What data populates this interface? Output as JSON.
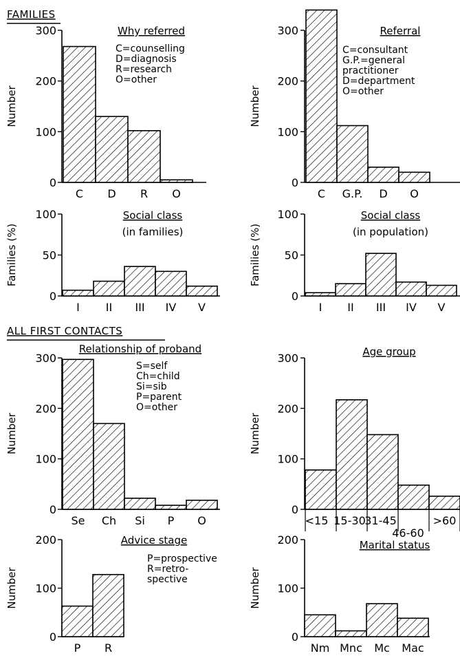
{
  "figure": {
    "sections": [
      "FAMILIES",
      "ALL FIRST CONTACTS"
    ]
  },
  "chart_data": [
    {
      "id": "why-referred",
      "type": "bar",
      "title": "Why referred",
      "subtitle": "",
      "ylabel": "Number",
      "ylim": [
        0,
        300
      ],
      "yticks": [
        "0",
        "100",
        "200",
        "300"
      ],
      "categories": [
        "C",
        "D",
        "R",
        "O"
      ],
      "values": [
        268,
        130,
        102,
        5
      ],
      "legend": [
        "C=counselling",
        "D=diagnosis",
        "R=research",
        "O=other"
      ]
    },
    {
      "id": "referral",
      "type": "bar",
      "title": "Referral",
      "subtitle": "",
      "ylabel": "Number",
      "ylim": [
        0,
        300
      ],
      "yticks": [
        "0",
        "100",
        "200",
        "300"
      ],
      "categories": [
        "C",
        "G.P.",
        "D",
        "O"
      ],
      "values": [
        340,
        112,
        30,
        20
      ],
      "legend": [
        "C=consultant",
        "G.P.=general",
        "practitioner",
        "D=department",
        "O=other"
      ]
    },
    {
      "id": "social-class-families",
      "type": "bar",
      "title": "Social class",
      "subtitle": "(in families)",
      "ylabel": "Families (%)",
      "ylim": [
        0,
        100
      ],
      "yticks": [
        "0",
        "50",
        "100"
      ],
      "categories": [
        "I",
        "II",
        "III",
        "IV",
        "V"
      ],
      "values": [
        7,
        18,
        36,
        30,
        12
      ],
      "legend": []
    },
    {
      "id": "social-class-population",
      "type": "bar",
      "title": "Social class",
      "subtitle": "(in population)",
      "ylabel": "Families (%)",
      "ylim": [
        0,
        100
      ],
      "yticks": [
        "0",
        "50",
        "100"
      ],
      "categories": [
        "I",
        "II",
        "III",
        "IV",
        "V"
      ],
      "values": [
        4,
        15,
        52,
        17,
        13
      ],
      "legend": []
    },
    {
      "id": "relationship-of-proband",
      "type": "bar",
      "title": "Relationship of proband",
      "subtitle": "",
      "ylabel": "Number",
      "ylim": [
        0,
        300
      ],
      "yticks": [
        "0",
        "100",
        "200",
        "300"
      ],
      "categories": [
        "Se",
        "Ch",
        "Si",
        "P",
        "O"
      ],
      "values": [
        297,
        170,
        22,
        8,
        18
      ],
      "legend": [
        "S=self",
        "Ch=child",
        "Si=sib",
        "P=parent",
        "O=other"
      ]
    },
    {
      "id": "age-group",
      "type": "bar",
      "title": "Age group",
      "subtitle": "",
      "ylabel": "Number",
      "ylim": [
        0,
        300
      ],
      "yticks": [
        "0",
        "100",
        "200",
        "300"
      ],
      "categories": [
        "<15",
        "15-30",
        "31-45",
        "46-60",
        ">60"
      ],
      "values": [
        78,
        217,
        148,
        48,
        26
      ],
      "legend": []
    },
    {
      "id": "advice-stage",
      "type": "bar",
      "title": "Advice stage",
      "subtitle": "",
      "ylabel": "Number",
      "ylim": [
        0,
        200
      ],
      "yticks": [
        "0",
        "100",
        "200"
      ],
      "categories": [
        "P",
        "R"
      ],
      "values": [
        63,
        128
      ],
      "legend": [
        "P=prospective",
        "R=retro-",
        "spective"
      ]
    },
    {
      "id": "marital-status",
      "type": "bar",
      "title": "Marital status",
      "subtitle": "",
      "ylabel": "Number",
      "ylim": [
        0,
        200
      ],
      "yticks": [
        "0",
        "100",
        "200"
      ],
      "categories": [
        "Nm",
        "Mnc",
        "Mc",
        "Mac"
      ],
      "values": [
        45,
        12,
        68,
        38
      ],
      "legend": []
    }
  ]
}
